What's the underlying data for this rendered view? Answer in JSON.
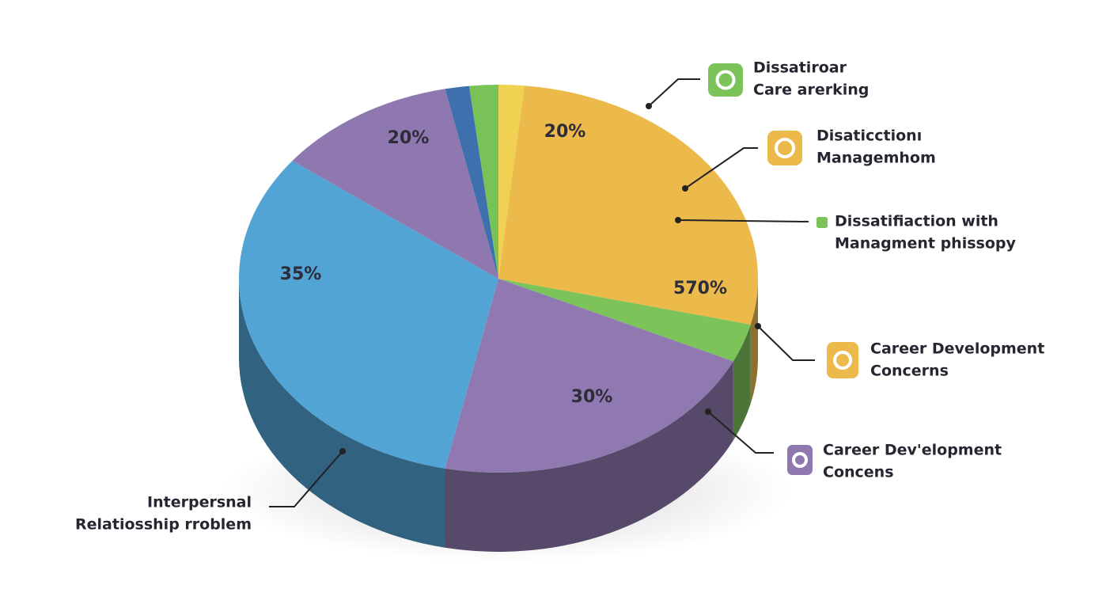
{
  "chart_data": {
    "type": "pie3d",
    "slices": [
      {
        "value": 1.6,
        "color": "#f0d152"
      },
      {
        "value": 27.2,
        "color": "#ecb94b"
      },
      {
        "value": 3.2,
        "color": "#7cc35a"
      },
      {
        "value": 21.3,
        "color": "#9079b0"
      },
      {
        "value": 32.1,
        "color": "#52a4d4"
      },
      {
        "value": 11.3,
        "color": "#8f78b0"
      },
      {
        "value": 1.5,
        "color": "#3f70ae"
      },
      {
        "value": 1.8,
        "color": "#78c257"
      }
    ],
    "annotations": [
      "20%",
      "20%",
      "35%",
      "570%",
      "30%"
    ],
    "callouts": [
      {
        "lines": [
          "Dissatiroar",
          "Care arerking"
        ],
        "color": "#7cc35a"
      },
      {
        "lines": [
          "Disaticctionı",
          "Managemhom"
        ],
        "color": "#ecb94b"
      },
      {
        "lines": [
          "Dissatifiaction with",
          "Managment phissopy"
        ],
        "color": "#7cc35a"
      },
      {
        "lines": [
          "Career Development",
          "Concerns"
        ],
        "color": "#ecb94b"
      },
      {
        "lines": [
          "Career Dev'elopment",
          "Concens"
        ],
        "color": "#8f78b0"
      },
      {
        "lines": [
          "Interpersnal",
          "Relatiosship rroblem"
        ],
        "color": "#3f70ae"
      }
    ]
  }
}
